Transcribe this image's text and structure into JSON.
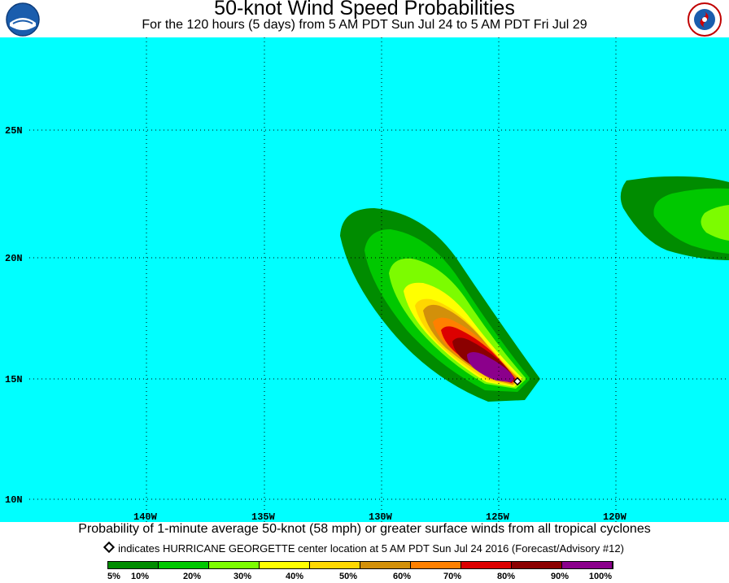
{
  "title": "50-knot Wind Speed Probabilities",
  "subtitle": "For the 120 hours (5 days) from 5 AM PDT Sun Jul 24 to 5 AM PDT Fri Jul 29",
  "logos": {
    "left": "noaa-logo",
    "right": "nws-logo"
  },
  "map": {
    "ocean_color": "#00FFFF",
    "lat_labels": [
      "25N",
      "20N",
      "15N",
      "10N"
    ],
    "lon_labels": [
      "140W",
      "135W",
      "130W",
      "125W",
      "120W"
    ],
    "storm_marker": {
      "lon": -123.6,
      "lat": 14.9
    }
  },
  "caption": "Probability of 1-minute average 50-knot (58 mph) or greater surface winds from all tropical cyclones",
  "note": "indicates HURRICANE GEORGETTE center location at 5 AM PDT Sun Jul 24 2016 (Forecast/Advisory #12)",
  "legend": {
    "colors": [
      "#008C00",
      "#00C800",
      "#7CFC00",
      "#FFFF00",
      "#FFD700",
      "#D2900A",
      "#FF8000",
      "#DC0000",
      "#8B0000",
      "#8B008B"
    ],
    "labels": [
      "5%",
      "10%",
      "20%",
      "30%",
      "40%",
      "50%",
      "60%",
      "70%",
      "80%",
      "90%",
      "100%"
    ]
  }
}
